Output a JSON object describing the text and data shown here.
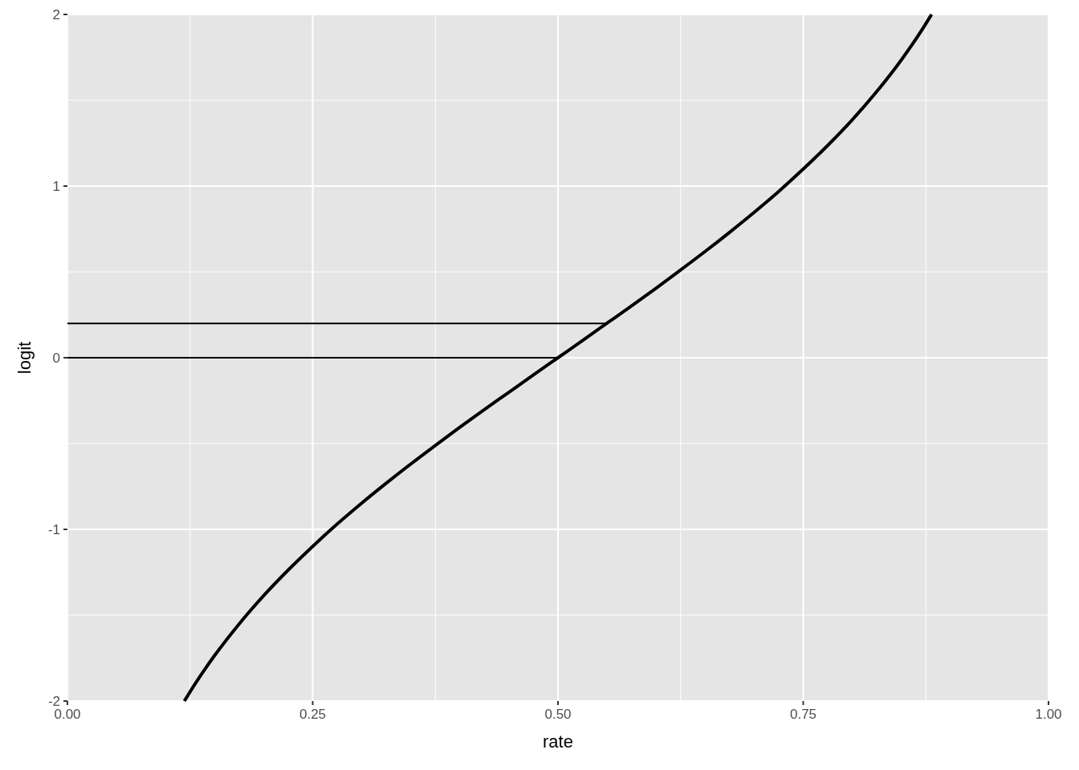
{
  "chart_data": {
    "type": "line",
    "xlabel": "rate",
    "ylabel": "logit",
    "xlim": [
      0,
      1
    ],
    "ylim": [
      -2,
      2
    ],
    "xticks": [
      {
        "value": 0,
        "label": "0.00"
      },
      {
        "value": 0.25,
        "label": "0.25"
      },
      {
        "value": 0.5,
        "label": "0.50"
      },
      {
        "value": 0.75,
        "label": "0.75"
      },
      {
        "value": 1,
        "label": "1.00"
      }
    ],
    "yticks": [
      -2,
      -1,
      0,
      1,
      2
    ],
    "grid": true,
    "series": [
      {
        "color": "#000000",
        "x": [
          0.1192,
          0.13,
          0.15,
          0.175,
          0.2,
          0.225,
          0.25,
          0.275,
          0.3,
          0.325,
          0.35,
          0.375,
          0.4,
          0.425,
          0.45,
          0.475,
          0.5,
          0.525,
          0.55,
          0.575,
          0.6,
          0.625,
          0.65,
          0.675,
          0.7,
          0.725,
          0.75,
          0.775,
          0.8,
          0.825,
          0.85,
          0.87,
          0.8808
        ],
        "values": [
          -2,
          -1.901,
          -1.735,
          -1.551,
          -1.386,
          -1.237,
          -1.099,
          -0.969,
          -0.847,
          -0.731,
          -0.619,
          -0.511,
          -0.405,
          -0.302,
          -0.201,
          -0.1,
          0,
          0.1,
          0.201,
          0.302,
          0.405,
          0.511,
          0.619,
          0.731,
          0.847,
          0.969,
          1.099,
          1.237,
          1.386,
          1.551,
          1.735,
          1.901,
          2
        ]
      },
      {
        "color": "#000000",
        "x": [
          0,
          0.55
        ],
        "values": [
          0.2,
          0.2
        ]
      },
      {
        "color": "#000000",
        "x": [
          0,
          0.5
        ],
        "values": [
          0,
          0
        ]
      }
    ]
  }
}
